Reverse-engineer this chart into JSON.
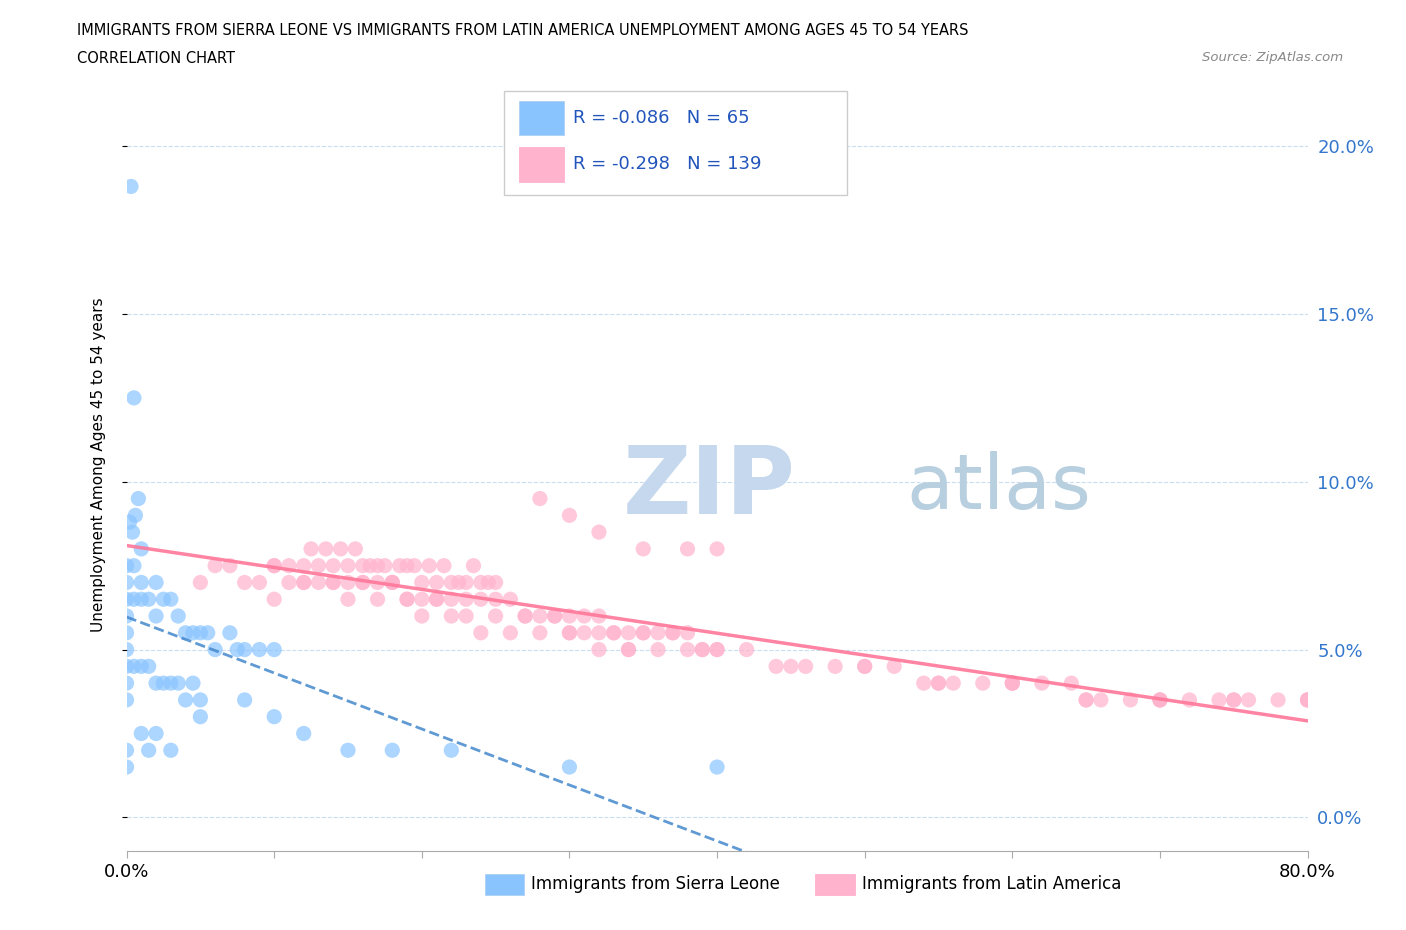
{
  "title_line1": "IMMIGRANTS FROM SIERRA LEONE VS IMMIGRANTS FROM LATIN AMERICA UNEMPLOYMENT AMONG AGES 45 TO 54 YEARS",
  "title_line2": "CORRELATION CHART",
  "source": "Source: ZipAtlas.com",
  "ylabel": "Unemployment Among Ages 45 to 54 years",
  "yticks": [
    "0.0%",
    "5.0%",
    "10.0%",
    "15.0%",
    "20.0%"
  ],
  "ytick_vals": [
    0.0,
    5.0,
    10.0,
    15.0,
    20.0
  ],
  "xlim": [
    0.0,
    80.0
  ],
  "ylim": [
    -1.0,
    22.0
  ],
  "legend_label1": "Immigrants from Sierra Leone",
  "legend_label2": "Immigrants from Latin America",
  "r1": -0.086,
  "n1": 65,
  "r2": -0.298,
  "n2": 139,
  "color1": "#89c4ff",
  "color2": "#ffb3cc",
  "trend1_color": "#4488cc",
  "trend2_color": "#ff7799",
  "watermark_zip": "ZIP",
  "watermark_atlas": "atlas",
  "watermark_color_zip": "#c5d8ed",
  "watermark_color_atlas": "#b8cfe0",
  "tick_color": "#3377cc",
  "ytick_right_color": "#3377cc"
}
